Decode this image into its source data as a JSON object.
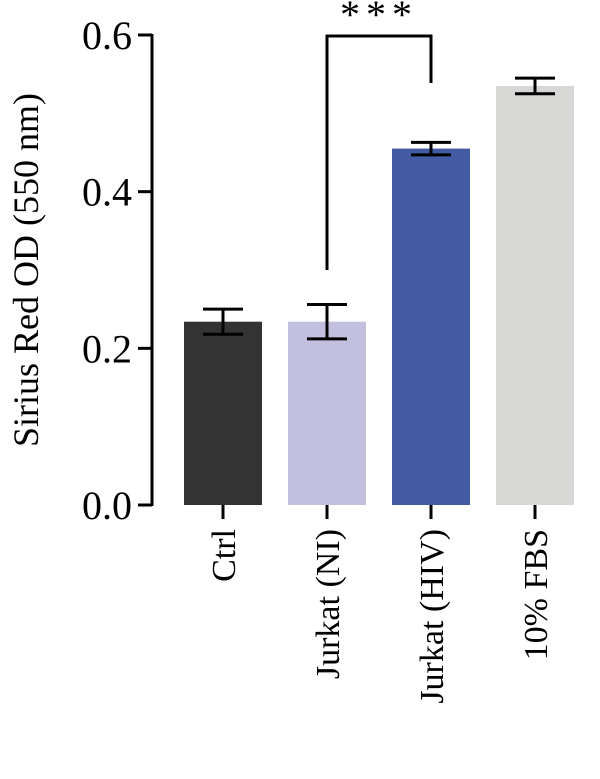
{
  "chart_data": {
    "type": "bar",
    "title": "",
    "xlabel": "",
    "ylabel": "Sirius Red OD (550 nm)",
    "ylim": [
      0,
      0.6
    ],
    "yticks": [
      0.0,
      0.2,
      0.4,
      0.6
    ],
    "ytick_labels": [
      "0.0",
      "0.2",
      "0.4",
      "0.6"
    ],
    "categories": [
      "Ctrl",
      "Jurkat (NI)",
      "Jurkat (HIV)",
      "10% FBS"
    ],
    "values": [
      0.234,
      0.234,
      0.455,
      0.535
    ],
    "errors": [
      0.016,
      0.022,
      0.008,
      0.01
    ],
    "colors": [
      "#333333",
      "#c2bfdf",
      "#425ba3",
      "#d7d7d6"
    ],
    "grid": false,
    "legend": "none",
    "annotations": [
      {
        "type": "significance",
        "from": "Jurkat (NI)",
        "to": "Jurkat (HIV)",
        "text": "***"
      }
    ]
  }
}
